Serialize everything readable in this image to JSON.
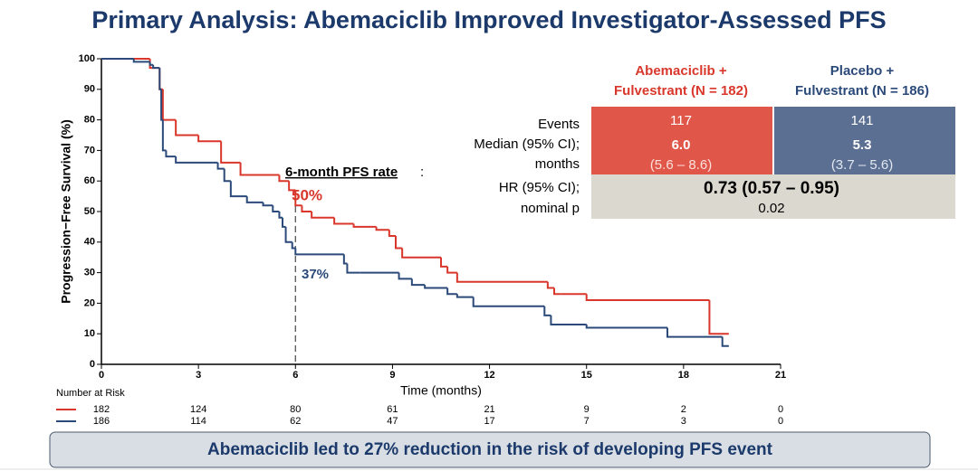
{
  "title": "Primary Analysis: Abemaciclib Improved Investigator-Assessed PFS",
  "chart_data": {
    "type": "step",
    "xlabel": "Time (months)",
    "ylabel": "Progression−Free Survival (%)",
    "xlim": [
      0,
      21
    ],
    "xticks": [
      0,
      3,
      6,
      9,
      12,
      15,
      18,
      21
    ],
    "ylim": [
      0,
      100
    ],
    "yticks": [
      0,
      10,
      20,
      30,
      40,
      50,
      60,
      70,
      80,
      90,
      100
    ],
    "series": [
      {
        "color": "#d9372b",
        "x": [
          0,
          1.5,
          1.8,
          1.9,
          2.3,
          3.0,
          3.7,
          4.3,
          5.5,
          5.8,
          6.0,
          6.2,
          6.5,
          7.2,
          7.8,
          8.5,
          8.9,
          9.1,
          9.3,
          10.5,
          10.7,
          11.0,
          13.8,
          14.0,
          14.2,
          15.0,
          18.8,
          19.4
        ],
        "values": [
          100,
          97,
          90,
          80,
          75,
          73,
          66,
          62,
          60,
          57,
          52,
          50,
          48,
          46,
          45,
          44,
          42,
          38,
          35,
          32,
          30,
          27,
          25,
          23,
          23,
          21,
          10,
          10
        ]
      },
      {
        "color": "#2b4a7a",
        "x": [
          0,
          1.0,
          1.5,
          1.6,
          1.8,
          1.85,
          1.9,
          2.0,
          2.3,
          3.6,
          3.8,
          4.0,
          4.5,
          5.0,
          5.3,
          5.5,
          5.6,
          5.7,
          5.9,
          6.0,
          7.5,
          7.6,
          8.0,
          9.2,
          9.6,
          10.0,
          10.7,
          11.0,
          11.5,
          13.7,
          13.9,
          15.0,
          17.5,
          19.2,
          19.4
        ],
        "values": [
          100,
          99,
          98,
          97,
          90,
          80,
          70,
          68,
          66,
          64,
          60,
          55,
          53,
          52,
          50,
          48,
          45,
          40,
          38,
          36,
          33,
          30,
          30,
          28,
          26,
          25,
          23,
          22,
          19,
          16,
          13,
          12,
          9,
          6,
          6
        ]
      }
    ],
    "annotations": {
      "heading": "6-month PFS rate",
      "colon": ":",
      "abema": "50%",
      "placebo": "37%"
    }
  },
  "table": {
    "headers": [
      [
        "Abemaciclib +",
        "Fulvestrant (N = 182)"
      ],
      [
        "Placebo +",
        "Fulvestrant (N = 186)"
      ]
    ],
    "row_labels": [
      "Events",
      "Median (95% CI);",
      "months",
      "HR (95% CI);",
      "nominal p"
    ],
    "events": [
      "117",
      "141"
    ],
    "median": [
      "6.0",
      "5.3"
    ],
    "median_ci": [
      "(5.6 – 8.6)",
      "(3.7 – 5.6)"
    ],
    "hr": "0.73 (0.57 – 0.95)",
    "p": "0.02"
  },
  "risk_table": {
    "label": "Number at Risk",
    "rows": [
      [
        "182",
        "124",
        "80",
        "61",
        "21",
        "9",
        "2",
        "0"
      ],
      [
        "186",
        "114",
        "62",
        "47",
        "17",
        "7",
        "3",
        "0"
      ]
    ]
  },
  "banner": "Abemaciclib led to 27% reduction in the risk of developing PFS event"
}
